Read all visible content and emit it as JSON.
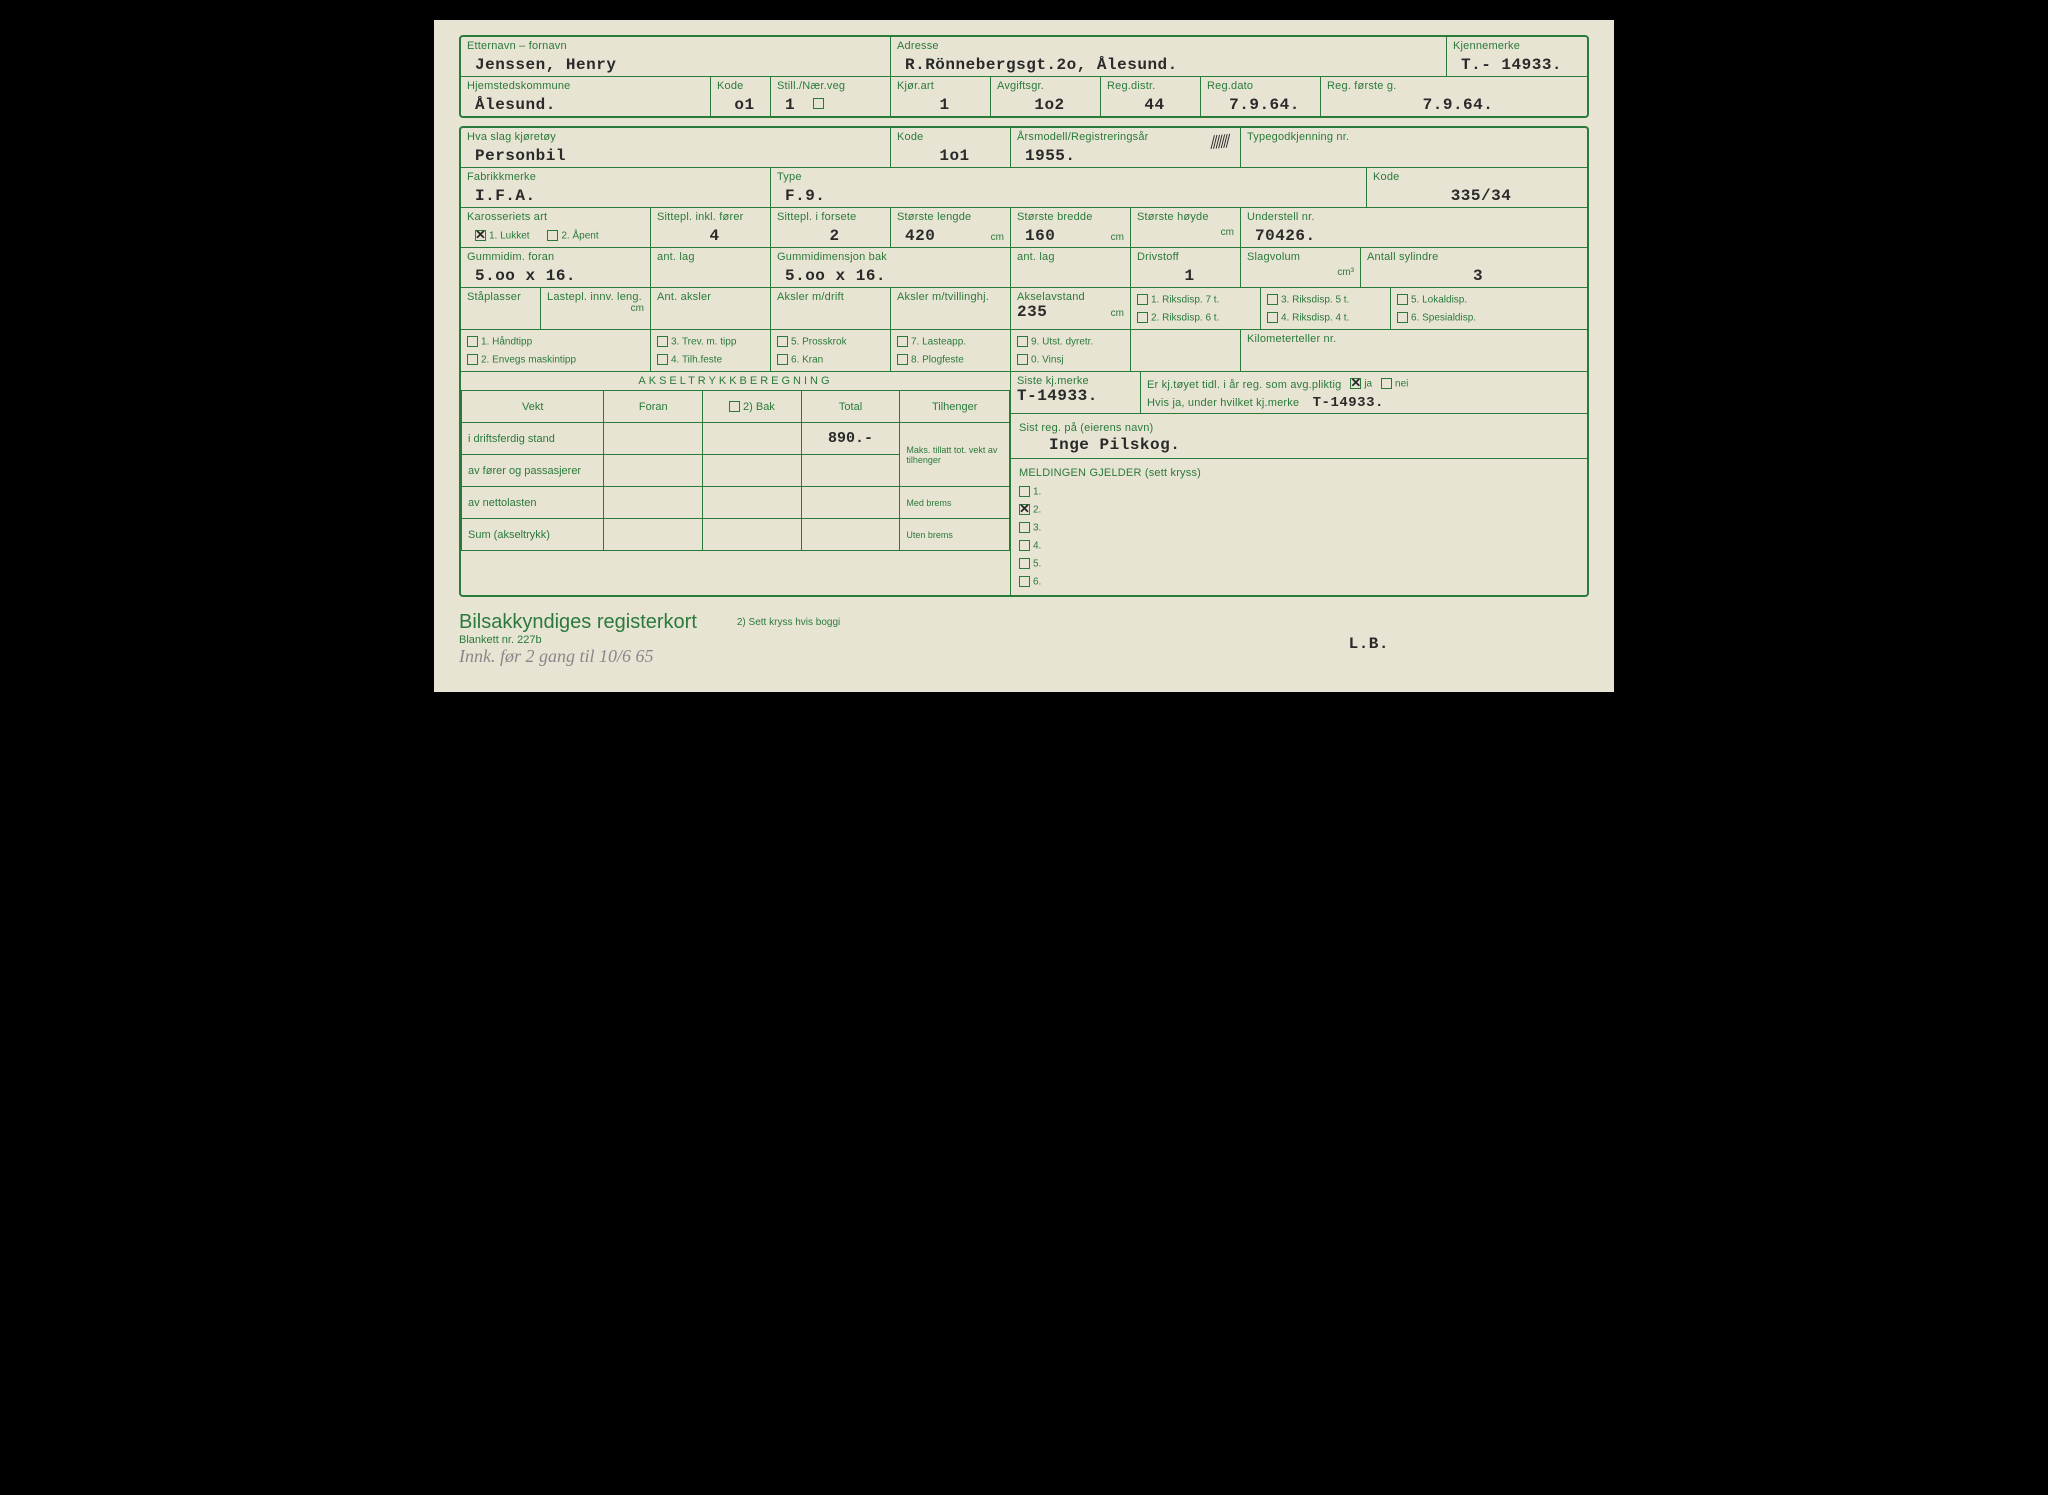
{
  "colors": {
    "ink": "#2a2a2a",
    "green": "#2a7a3a",
    "paper": "#e8e4d4"
  },
  "r1": {
    "etternavn_label": "Etternavn – fornavn",
    "etternavn": "Jenssen, Henry",
    "adresse_label": "Adresse",
    "adresse": "R.Rönnebergsgt.2o, Ålesund.",
    "kjennemerke_label": "Kjennemerke",
    "kjennemerke": "T.- 14933."
  },
  "r2": {
    "hjemsted_label": "Hjemstedskommune",
    "hjemsted": "Ålesund.",
    "kode_label": "Kode",
    "kode": "o1",
    "still_label": "Still./Nær.veg",
    "still": "1",
    "kjorart_label": "Kjør.art",
    "kjorart": "1",
    "avgift_label": "Avgiftsgr.",
    "avgift": "1o2",
    "regdistr_label": "Reg.distr.",
    "regdistr": "44",
    "regdato_label": "Reg.dato",
    "regdato": "7.9.64.",
    "regforste_label": "Reg. første g.",
    "regforste": "7.9.64."
  },
  "r3": {
    "slag_label": "Hva slag kjøretøy",
    "slag": "Personbil",
    "kode_label": "Kode",
    "kode": "1o1",
    "arsmodell_label": "Årsmodell/Registreringsår",
    "arsmodell": "1955.",
    "typegod_label": "Typegodkjenning nr.",
    "typegod": ""
  },
  "r4": {
    "fabrikk_label": "Fabrikkmerke",
    "fabrikk": "I.F.A.",
    "type_label": "Type",
    "type": "F.9.",
    "kode_label": "Kode",
    "kode": "335/34"
  },
  "r5": {
    "kaross_label": "Karosseriets art",
    "kaross_opt1": "1. Lukket",
    "kaross_opt2": "2. Åpent",
    "kaross_checked": 1,
    "sittepl_label": "Sittepl. inkl. fører",
    "sittepl": "4",
    "sitteplf_label": "Sittepl. i forsete",
    "sitteplf": "2",
    "lengde_label": "Største lengde",
    "lengde": "420",
    "cm": "cm",
    "bredde_label": "Største bredde",
    "bredde": "160",
    "hoyde_label": "Største høyde",
    "hoyde": "",
    "understell_label": "Understell nr.",
    "understell": "70426."
  },
  "r6": {
    "gummif_label": "Gummidim. foran",
    "gummif": "5.oo x  16.",
    "antlagf_label": "ant. lag",
    "antlagf": "",
    "gummib_label": "Gummidimensjon bak",
    "gummib": "5.oo x   16.",
    "antlagb_label": "ant. lag",
    "antlagb": "",
    "drivstoff_label": "Drivstoff",
    "drivstoff": "1",
    "slagvolum_label": "Slagvolum",
    "slagvolum": "",
    "cm3": "cm³",
    "sylindre_label": "Antall sylindre",
    "sylindre": "3"
  },
  "r7": {
    "staplasser_label": "Ståplasser",
    "lastepl_label": "Lastepl. innv. leng.",
    "cm": "cm",
    "aksler_label": "Ant. aksler",
    "akslerdrift_label": "Aksler m/drift",
    "akslertv_label": "Aksler m/tvillinghj.",
    "akselavstand_label": "Akselavstand",
    "akselavstand": "235",
    "riks7": "1. Riksdisp. 7 t.",
    "riks6": "2. Riksdisp. 6 t.",
    "riks5": "3. Riksdisp. 5 t.",
    "riks4": "4. Riksdisp. 4 t.",
    "lokal": "5. Lokaldisp.",
    "spesial": "6. Spesialdisp."
  },
  "r8": {
    "o1": "1. Håndtipp",
    "o2": "2. Envegs maskintipp",
    "o3": "3. Trev. m. tipp",
    "o4": "4. Tilh.feste",
    "o5": "5. Prosskrok",
    "o6": "6. Kran",
    "o7": "7. Lasteapp.",
    "o8": "8. Plogfeste",
    "o9": "9. Utst. dyretr.",
    "o0": "0. Vinsj",
    "km_label": "Kilometerteller nr."
  },
  "axle": {
    "header": "AKSELTRYKKBEREGNING",
    "cols": [
      "Vekt",
      "Foran",
      "2) Bak",
      "Total",
      "Tilhenger"
    ],
    "rows": [
      {
        "label": "i driftsferdig stand",
        "total": "890.-"
      },
      {
        "label": "av fører og passasjerer"
      },
      {
        "label": "av nettolasten"
      },
      {
        "label": "Sum (akseltrykk)"
      }
    ],
    "tilh": [
      "Maks. tillatt tot. vekt av tilhenger",
      "Med brems",
      "Uten brems"
    ]
  },
  "right": {
    "siste_label": "Siste kj.merke",
    "siste": "T-14933.",
    "erreg_label": "Er kj.tøyet tidl. i år reg. som avg.pliktig",
    "ja": "ja",
    "nei": "nei",
    "erreg_ja": true,
    "hvis_label": "Hvis ja, under hvilket kj.merke",
    "hvis": "T-14933.",
    "sistreg_label": "Sist reg. på (eierens navn)",
    "sistreg": "Inge Pilskog.",
    "melding_label": "MELDINGEN GJELDER (sett kryss)",
    "melding_opts": [
      "1.",
      "2.",
      "3.",
      "4.",
      "5.",
      "6."
    ],
    "melding_checked": 2
  },
  "footer": {
    "title": "Bilsakkyndiges registerkort",
    "blankett": "Blankett nr. 227b",
    "note2": "2) Sett kryss hvis boggi",
    "handwriting": "Innk. før 2 gang til 10/6 65",
    "initials": "L.B."
  }
}
